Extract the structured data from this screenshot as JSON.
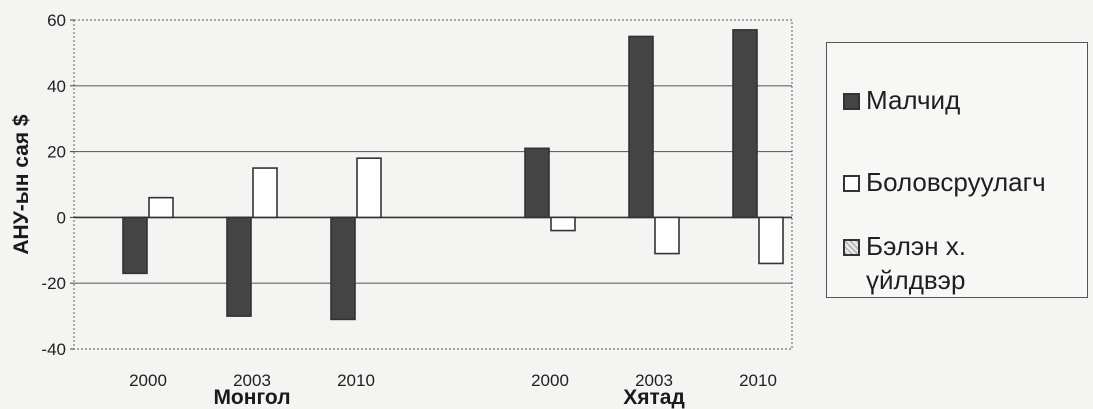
{
  "chart_data": {
    "type": "bar",
    "ylabel": "АНУ-ын сая $",
    "ylim": [
      -40,
      60
    ],
    "yticks": [
      -40,
      -20,
      0,
      20,
      40,
      60
    ],
    "grid": true,
    "legend_position": "right",
    "groups": [
      {
        "name": "Монгол",
        "categories": [
          "2000",
          "2003",
          "2010"
        ]
      },
      {
        "name": "Хятад",
        "categories": [
          "2000",
          "2003",
          "2010"
        ]
      }
    ],
    "series": [
      {
        "name": "Малчид",
        "color": "#444444",
        "values": [
          -17,
          -30,
          -31,
          21,
          55,
          57
        ]
      },
      {
        "name": "Боловсруулагч",
        "color": "#ffffff",
        "values": [
          6,
          15,
          18,
          -4,
          -11,
          -14
        ]
      },
      {
        "name": "Бэлэн х. үйлдвэр",
        "color": "#bbbbbb",
        "values": [
          0,
          0,
          0,
          0,
          0,
          0
        ]
      }
    ]
  }
}
